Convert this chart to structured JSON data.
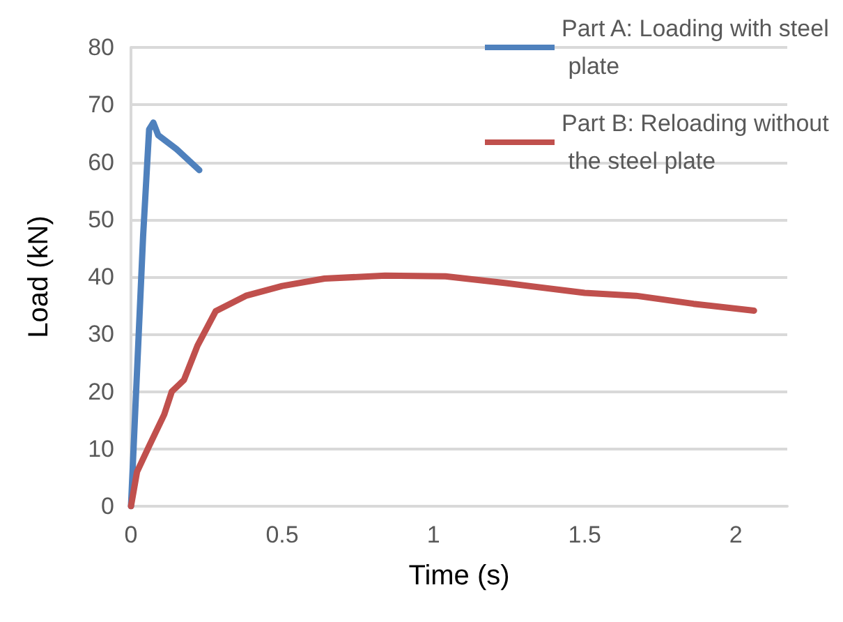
{
  "chart_data": {
    "type": "line",
    "xlabel": "Time (s)",
    "ylabel": "Load (kN)",
    "xlim": [
      0,
      2.17
    ],
    "xticks": [
      0,
      0.5,
      1,
      1.5,
      2
    ],
    "ylim": [
      0,
      80
    ],
    "yticks": [
      0,
      10,
      20,
      30,
      40,
      50,
      60,
      70,
      80
    ],
    "grid": "y",
    "legend": "top right",
    "marker": "none",
    "line_style": "solid",
    "series": [
      {
        "name": "Part A: Loading with steel plate",
        "color": "#4f81bd",
        "x": [
          0,
          0.04,
          0.06,
          0.074,
          0.09,
          0.15,
          0.226
        ],
        "values": [
          0,
          47,
          65.7,
          66.9,
          64.7,
          62.3,
          58.6
        ]
      },
      {
        "name": "Part B: Reloading without the steel plate",
        "color": "#c0504d",
        "x": [
          0,
          0.02,
          0.06,
          0.11,
          0.135,
          0.175,
          0.22,
          0.28,
          0.38,
          0.5,
          0.64,
          0.84,
          1.04,
          1.24,
          1.5,
          1.67,
          1.86,
          2.06
        ],
        "values": [
          0,
          6,
          10.5,
          16,
          20,
          22,
          28,
          34,
          36.7,
          38.4,
          39.7,
          40.2,
          40.1,
          38.9,
          37.2,
          36.7,
          35.3,
          34.1
        ]
      }
    ]
  }
}
